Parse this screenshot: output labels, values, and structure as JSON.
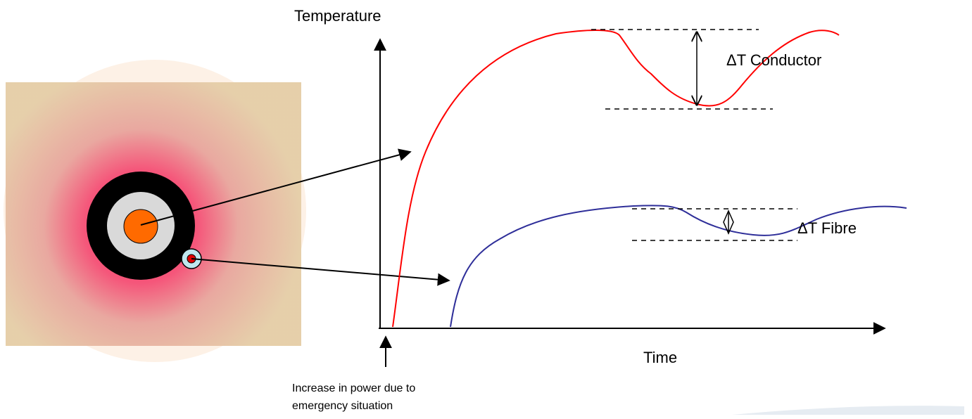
{
  "axes": {
    "y_label": "Temperature",
    "x_label": "Time"
  },
  "annotations": {
    "delta_conductor": "ΔT Conductor",
    "delta_fibre": "ΔT Fibre",
    "power_note": [
      "Increase in power due to",
      "emergency situation"
    ]
  }
}
